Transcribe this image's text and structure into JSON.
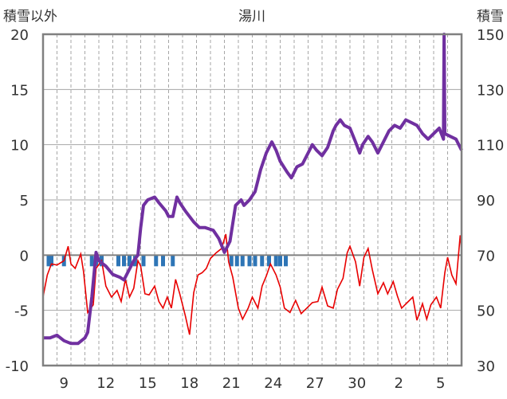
{
  "chart_data": {
    "type": "line",
    "title": "湯川",
    "ylabel_left": "積雪以外",
    "ylabel_right": "積雪",
    "ylim_left": [
      -10,
      20
    ],
    "ylim_right": [
      30,
      150
    ],
    "yticks_left": [
      -10,
      -5,
      0,
      5,
      10,
      15,
      20
    ],
    "yticks_right": [
      30,
      50,
      70,
      90,
      110,
      130,
      150
    ],
    "xlim_days": [
      0,
      30
    ],
    "xtick_labels": [
      {
        "day": 1.5,
        "label": "9"
      },
      {
        "day": 4.5,
        "label": "12"
      },
      {
        "day": 7.5,
        "label": "15"
      },
      {
        "day": 10.5,
        "label": "18"
      },
      {
        "day": 13.5,
        "label": "21"
      },
      {
        "day": 16.5,
        "label": "24"
      },
      {
        "day": 19.5,
        "label": "27"
      },
      {
        "day": 22.5,
        "label": "30"
      },
      {
        "day": 25.5,
        "label": "2"
      },
      {
        "day": 28.5,
        "label": "5"
      }
    ],
    "grid": true,
    "colors": {
      "temperature": "#e80000",
      "snow": "#7030a0",
      "precipitation": "#2e75b6",
      "zero_line": "#808080",
      "frame": "#808080"
    },
    "series": [
      {
        "axis": "right",
        "points": [
          [
            0,
            40
          ],
          [
            0.5,
            40
          ],
          [
            1,
            41
          ],
          [
            1.5,
            39
          ],
          [
            2,
            38
          ],
          [
            2.5,
            38
          ],
          [
            3,
            40
          ],
          [
            3.2,
            42
          ],
          [
            3.5,
            55
          ],
          [
            3.8,
            71
          ],
          [
            4,
            68
          ],
          [
            4.5,
            66
          ],
          [
            5,
            63
          ],
          [
            5.5,
            62
          ],
          [
            5.8,
            61
          ],
          [
            6,
            63
          ],
          [
            6.5,
            68
          ],
          [
            6.8,
            70
          ],
          [
            7,
            80
          ],
          [
            7.2,
            88
          ],
          [
            7.5,
            90
          ],
          [
            8,
            91
          ],
          [
            8.3,
            89
          ],
          [
            8.8,
            86
          ],
          [
            9,
            84
          ],
          [
            9.3,
            84
          ],
          [
            9.6,
            91
          ],
          [
            9.8,
            89
          ],
          [
            10.2,
            86
          ],
          [
            10.8,
            82
          ],
          [
            11.2,
            80
          ],
          [
            11.6,
            80
          ],
          [
            12.2,
            79
          ],
          [
            12.6,
            76
          ],
          [
            13,
            71
          ],
          [
            13.4,
            75
          ],
          [
            13.8,
            88
          ],
          [
            14.2,
            90
          ],
          [
            14.4,
            88
          ],
          [
            14.8,
            90
          ],
          [
            15.2,
            93
          ],
          [
            15.6,
            101
          ],
          [
            16,
            107
          ],
          [
            16.4,
            111
          ],
          [
            16.7,
            108
          ],
          [
            17,
            104
          ],
          [
            17.5,
            100
          ],
          [
            17.8,
            98
          ],
          [
            18.2,
            102
          ],
          [
            18.6,
            103
          ],
          [
            19,
            107
          ],
          [
            19.3,
            110
          ],
          [
            19.6,
            108
          ],
          [
            20,
            106
          ],
          [
            20.4,
            109
          ],
          [
            20.8,
            115
          ],
          [
            21,
            117
          ],
          [
            21.3,
            119
          ],
          [
            21.6,
            117
          ],
          [
            22,
            116
          ],
          [
            22.4,
            111
          ],
          [
            22.7,
            107
          ],
          [
            22.9,
            110
          ],
          [
            23.3,
            113
          ],
          [
            23.6,
            111
          ],
          [
            24,
            107
          ],
          [
            24.4,
            111
          ],
          [
            24.8,
            115
          ],
          [
            25.2,
            117
          ],
          [
            25.6,
            116
          ],
          [
            26,
            119
          ],
          [
            26.4,
            118
          ],
          [
            26.8,
            117
          ],
          [
            27.2,
            114
          ],
          [
            27.6,
            112
          ],
          [
            28,
            114
          ],
          [
            28.4,
            116
          ],
          [
            28.7,
            112
          ],
          [
            28.75,
            150
          ],
          [
            28.8,
            114
          ],
          [
            29.2,
            113
          ],
          [
            29.6,
            112
          ],
          [
            30,
            108
          ]
        ]
      },
      {
        "axis": "left",
        "points": [
          [
            0,
            -3.8
          ],
          [
            0.3,
            -1.8
          ],
          [
            0.6,
            -0.8
          ],
          [
            1,
            -0.9
          ],
          [
            1.5,
            -0.5
          ],
          [
            1.8,
            0.8
          ],
          [
            2,
            -0.8
          ],
          [
            2.3,
            -1.2
          ],
          [
            2.7,
            0.1
          ],
          [
            2.9,
            -1.5
          ],
          [
            3.2,
            -5.2
          ],
          [
            3.6,
            -4.5
          ],
          [
            3.8,
            -1.2
          ],
          [
            4.2,
            -0.5
          ],
          [
            4.5,
            -2.8
          ],
          [
            4.9,
            -3.8
          ],
          [
            5.3,
            -3.2
          ],
          [
            5.6,
            -4.2
          ],
          [
            5.9,
            -2.2
          ],
          [
            6.2,
            -3.8
          ],
          [
            6.5,
            -3
          ],
          [
            6.8,
            -0.5
          ],
          [
            7,
            -1
          ],
          [
            7.3,
            -3.5
          ],
          [
            7.6,
            -3.6
          ],
          [
            8,
            -2.8
          ],
          [
            8.3,
            -4.2
          ],
          [
            8.6,
            -4.8
          ],
          [
            8.9,
            -3.8
          ],
          [
            9.2,
            -4.8
          ],
          [
            9.5,
            -2.2
          ],
          [
            9.8,
            -3.5
          ],
          [
            10.2,
            -5.5
          ],
          [
            10.5,
            -7.2
          ],
          [
            10.8,
            -3.4
          ],
          [
            11.1,
            -1.8
          ],
          [
            11.4,
            -1.6
          ],
          [
            11.7,
            -1.2
          ],
          [
            12,
            -0.3
          ],
          [
            12.4,
            0.2
          ],
          [
            12.8,
            0.6
          ],
          [
            13.1,
            1.9
          ],
          [
            13.3,
            -0.6
          ],
          [
            13.6,
            -2
          ],
          [
            14,
            -4.8
          ],
          [
            14.3,
            -5.8
          ],
          [
            14.7,
            -4.8
          ],
          [
            15,
            -3.8
          ],
          [
            15.4,
            -4.8
          ],
          [
            15.7,
            -2.8
          ],
          [
            16,
            -1.9
          ],
          [
            16.3,
            -0.8
          ],
          [
            16.7,
            -1.8
          ],
          [
            17,
            -2.9
          ],
          [
            17.3,
            -4.8
          ],
          [
            17.7,
            -5.2
          ],
          [
            18.1,
            -4.1
          ],
          [
            18.5,
            -5.3
          ],
          [
            18.9,
            -4.8
          ],
          [
            19.3,
            -4.3
          ],
          [
            19.7,
            -4.2
          ],
          [
            20,
            -2.9
          ],
          [
            20.4,
            -4.6
          ],
          [
            20.8,
            -4.8
          ],
          [
            21.1,
            -3.1
          ],
          [
            21.5,
            -2.1
          ],
          [
            21.8,
            0.2
          ],
          [
            22,
            0.8
          ],
          [
            22.4,
            -0.6
          ],
          [
            22.7,
            -2.8
          ],
          [
            23,
            -0.2
          ],
          [
            23.3,
            0.6
          ],
          [
            23.6,
            -1.3
          ],
          [
            24,
            -3.5
          ],
          [
            24.4,
            -2.5
          ],
          [
            24.7,
            -3.5
          ],
          [
            25.1,
            -2.4
          ],
          [
            25.4,
            -3.7
          ],
          [
            25.7,
            -4.8
          ],
          [
            26.1,
            -4.3
          ],
          [
            26.5,
            -3.8
          ],
          [
            26.8,
            -5.9
          ],
          [
            27.2,
            -4.4
          ],
          [
            27.5,
            -5.8
          ],
          [
            27.8,
            -4.5
          ],
          [
            28.2,
            -3.8
          ],
          [
            28.5,
            -4.8
          ],
          [
            28.8,
            -1.6
          ],
          [
            29,
            -0.2
          ],
          [
            29.3,
            -1.8
          ],
          [
            29.6,
            -2.6
          ],
          [
            29.9,
            1.8
          ],
          [
            30,
            0.5
          ]
        ]
      }
    ],
    "precipitation_days": [
      0.4,
      0.6,
      1.5,
      3.5,
      3.8,
      4.2,
      5.4,
      5.8,
      6.2,
      6.6,
      7.2,
      8.1,
      8.6,
      9.3,
      13.5,
      13.9,
      14.3,
      14.8,
      15.2,
      15.7,
      16.2,
      16.7,
      17,
      17.4
    ]
  }
}
